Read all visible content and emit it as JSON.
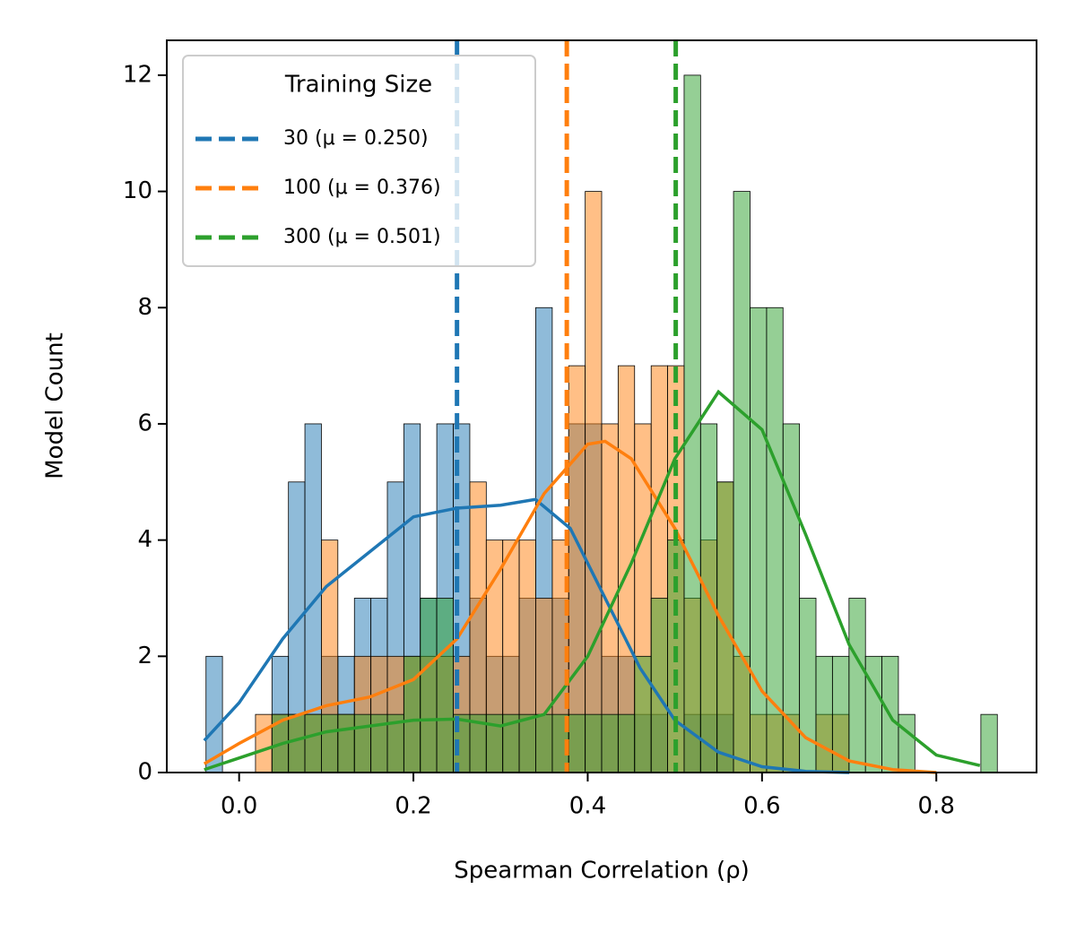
{
  "chart_data": {
    "type": "histogram",
    "xlabel": "Spearman Correlation (ρ)",
    "ylabel": "Model Count",
    "legend_title": "Training Size",
    "legend": "upper left",
    "xlim": [
      -0.083,
      0.915
    ],
    "ylim": [
      0,
      12.6
    ],
    "xticks": [
      {
        "value": 0,
        "label": "0.0"
      },
      0.2,
      0.4,
      0.6,
      0.8
    ],
    "yticks": [
      0,
      2,
      4,
      6,
      8,
      10,
      12
    ],
    "bins": [
      -0.038,
      -0.0191,
      -0.0002,
      0.0188,
      0.0377,
      0.0566,
      0.0755,
      0.0944,
      0.1133,
      0.1323,
      0.1512,
      0.1701,
      0.189,
      0.2079,
      0.2268,
      0.2458,
      0.2647,
      0.2836,
      0.3025,
      0.3214,
      0.3403,
      0.3593,
      0.3782,
      0.3971,
      0.416,
      0.4349,
      0.4538,
      0.4728,
      0.4917,
      0.5106,
      0.5295,
      0.5484,
      0.5673,
      0.5863,
      0.6052,
      0.6241,
      0.643,
      0.6619,
      0.6808,
      0.6998,
      0.7187,
      0.7376,
      0.7565,
      0.7754,
      0.7943,
      0.8133,
      0.8322,
      0.8511,
      0.87
    ],
    "series": [
      {
        "name": "30 (μ = 0.250)",
        "color": "#1f77b4",
        "mean": 0.25,
        "values": [
          2,
          0,
          0,
          0,
          2,
          5,
          6,
          2,
          2,
          3,
          3,
          5,
          6,
          3,
          6,
          6,
          3,
          2,
          2,
          3,
          8,
          3,
          6,
          6,
          2,
          2,
          1,
          1,
          0,
          1,
          1,
          1,
          0,
          0,
          0,
          0,
          0,
          0,
          0,
          0,
          0,
          0,
          0,
          0,
          0,
          0,
          0,
          0
        ],
        "kde_x": [
          -0.04,
          0.0,
          0.05,
          0.1,
          0.15,
          0.2,
          0.25,
          0.3,
          0.34,
          0.38,
          0.42,
          0.46,
          0.5,
          0.55,
          0.6,
          0.65,
          0.7
        ],
        "kde_y": [
          0.55,
          1.2,
          2.3,
          3.2,
          3.8,
          4.4,
          4.55,
          4.6,
          4.7,
          4.2,
          3.0,
          1.8,
          0.9,
          0.35,
          0.1,
          0.02,
          0
        ]
      },
      {
        "name": "100 (μ = 0.376)",
        "color": "#ff7f0e",
        "mean": 0.376,
        "values": [
          0,
          0,
          0,
          1,
          1,
          1,
          1,
          4,
          1,
          2,
          2,
          2,
          2,
          2,
          2,
          2,
          5,
          4,
          4,
          4,
          3,
          4,
          7,
          10,
          6,
          7,
          6,
          7,
          7,
          3,
          4,
          5,
          2,
          1,
          1,
          1,
          0,
          1,
          1,
          0,
          0,
          0,
          0,
          0,
          0,
          0,
          0,
          0
        ],
        "kde_x": [
          -0.04,
          0.0,
          0.05,
          0.1,
          0.15,
          0.2,
          0.25,
          0.3,
          0.35,
          0.4,
          0.42,
          0.45,
          0.5,
          0.55,
          0.6,
          0.65,
          0.7,
          0.75,
          0.8
        ],
        "kde_y": [
          0.15,
          0.5,
          0.9,
          1.15,
          1.3,
          1.6,
          2.3,
          3.5,
          4.8,
          5.65,
          5.7,
          5.4,
          4.2,
          2.7,
          1.4,
          0.6,
          0.2,
          0.05,
          0
        ]
      },
      {
        "name": "300 (μ = 0.501)",
        "color": "#2ca02c",
        "mean": 0.501,
        "values": [
          0,
          0,
          0,
          0,
          1,
          1,
          1,
          1,
          1,
          1,
          1,
          1,
          2,
          3,
          3,
          1,
          1,
          1,
          1,
          1,
          1,
          1,
          1,
          1,
          1,
          1,
          2,
          3,
          4,
          12,
          6,
          5,
          10,
          8,
          8,
          6,
          3,
          2,
          2,
          3,
          2,
          2,
          1,
          0,
          0,
          0,
          0,
          1
        ],
        "kde_x": [
          -0.04,
          0.0,
          0.05,
          0.1,
          0.15,
          0.2,
          0.25,
          0.3,
          0.35,
          0.4,
          0.45,
          0.5,
          0.55,
          0.6,
          0.65,
          0.7,
          0.75,
          0.8,
          0.85
        ],
        "kde_y": [
          0.05,
          0.25,
          0.5,
          0.7,
          0.8,
          0.9,
          0.92,
          0.8,
          1.0,
          2.0,
          3.6,
          5.4,
          6.55,
          5.9,
          4.1,
          2.2,
          0.9,
          0.3,
          0.12
        ]
      }
    ]
  }
}
